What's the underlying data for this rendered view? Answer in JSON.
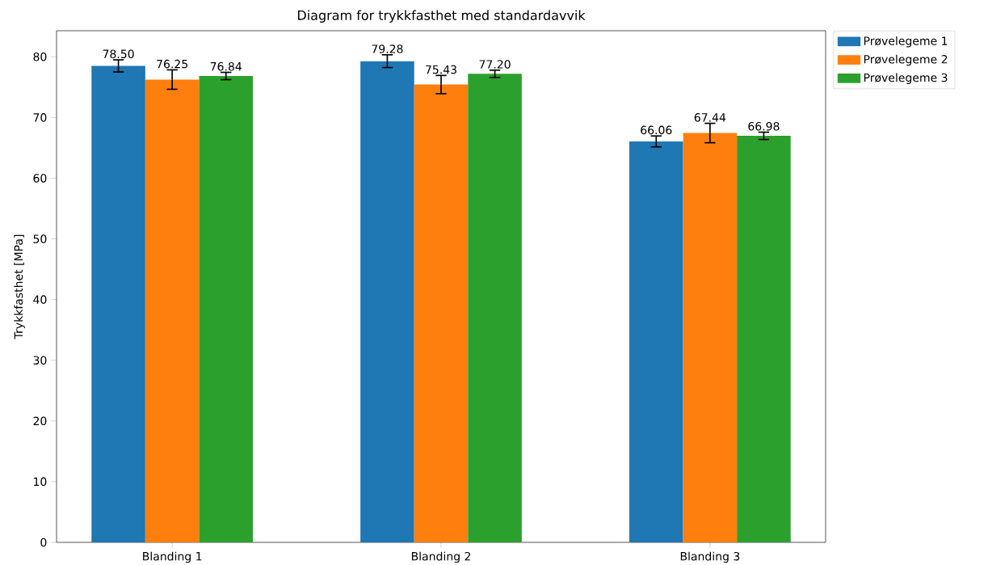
{
  "chart_data": {
    "type": "bar",
    "title": "Diagram for trykkfasthet med standardavvik",
    "ylabel": "Trykkfasthet [MPa]",
    "categories": [
      "Blanding 1",
      "Blanding 2",
      "Blanding 3"
    ],
    "series": [
      {
        "name": "Prøvelegeme 1",
        "color": "#1f77b4",
        "values": [
          78.5,
          79.28,
          66.06
        ],
        "errors": [
          1.0,
          1.05,
          0.9
        ],
        "value_labels": [
          "78.50",
          "79.28",
          "66.06"
        ]
      },
      {
        "name": "Prøvelegeme 2",
        "color": "#ff7f0e",
        "values": [
          76.25,
          75.43,
          67.44
        ],
        "errors": [
          1.6,
          1.5,
          1.6
        ],
        "value_labels": [
          "76.25",
          "75.43",
          "67.44"
        ]
      },
      {
        "name": "Prøvelegeme 3",
        "color": "#2ca02c",
        "values": [
          76.84,
          77.2,
          66.98
        ],
        "errors": [
          0.6,
          0.6,
          0.6
        ],
        "value_labels": [
          "76.84",
          "77.20",
          "66.98"
        ]
      }
    ],
    "ylim": [
      0,
      84.3
    ],
    "yticks": [
      0,
      10,
      20,
      30,
      40,
      50,
      60,
      70,
      80
    ],
    "grid": false,
    "legend": "top right"
  }
}
